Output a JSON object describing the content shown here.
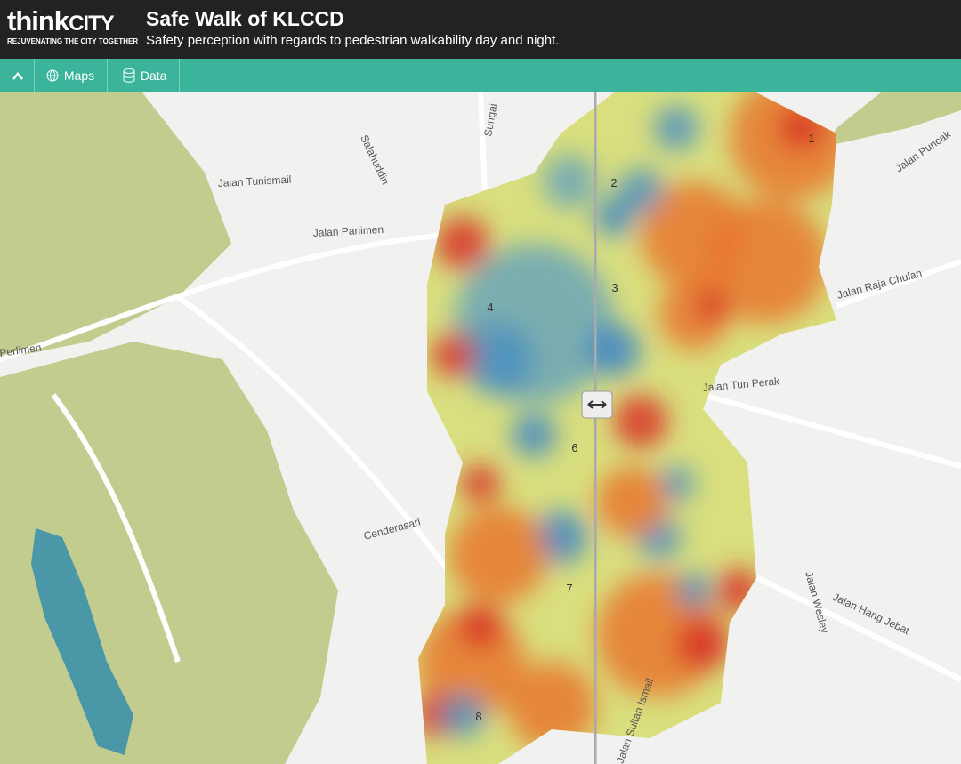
{
  "header": {
    "logo_think": "think",
    "logo_city": "CITY",
    "tagline": "REJUVENATING THE CITY TOGETHER",
    "title": "Safe Walk of KLCCD",
    "subtitle": "Safety perception with regards to pedestrian walkability day and night."
  },
  "toolbar": {
    "items": [
      "Maps",
      "Data"
    ]
  },
  "map": {
    "area_labels": [
      "1",
      "2",
      "3",
      "4",
      "6",
      "7",
      "8"
    ],
    "street_labels": [
      "Jalan Parlimen",
      "Jalan Tunismail",
      "Jalan Raja Chulan",
      "Jalan Puncak",
      "Jalan Tun Perak",
      "Jalan Hang Jebat",
      "Jalan Wesley",
      "Cenderasari",
      "Sungai",
      "Salahuddin",
      "Perlimen",
      "Jalan Sultan Ismail"
    ]
  }
}
